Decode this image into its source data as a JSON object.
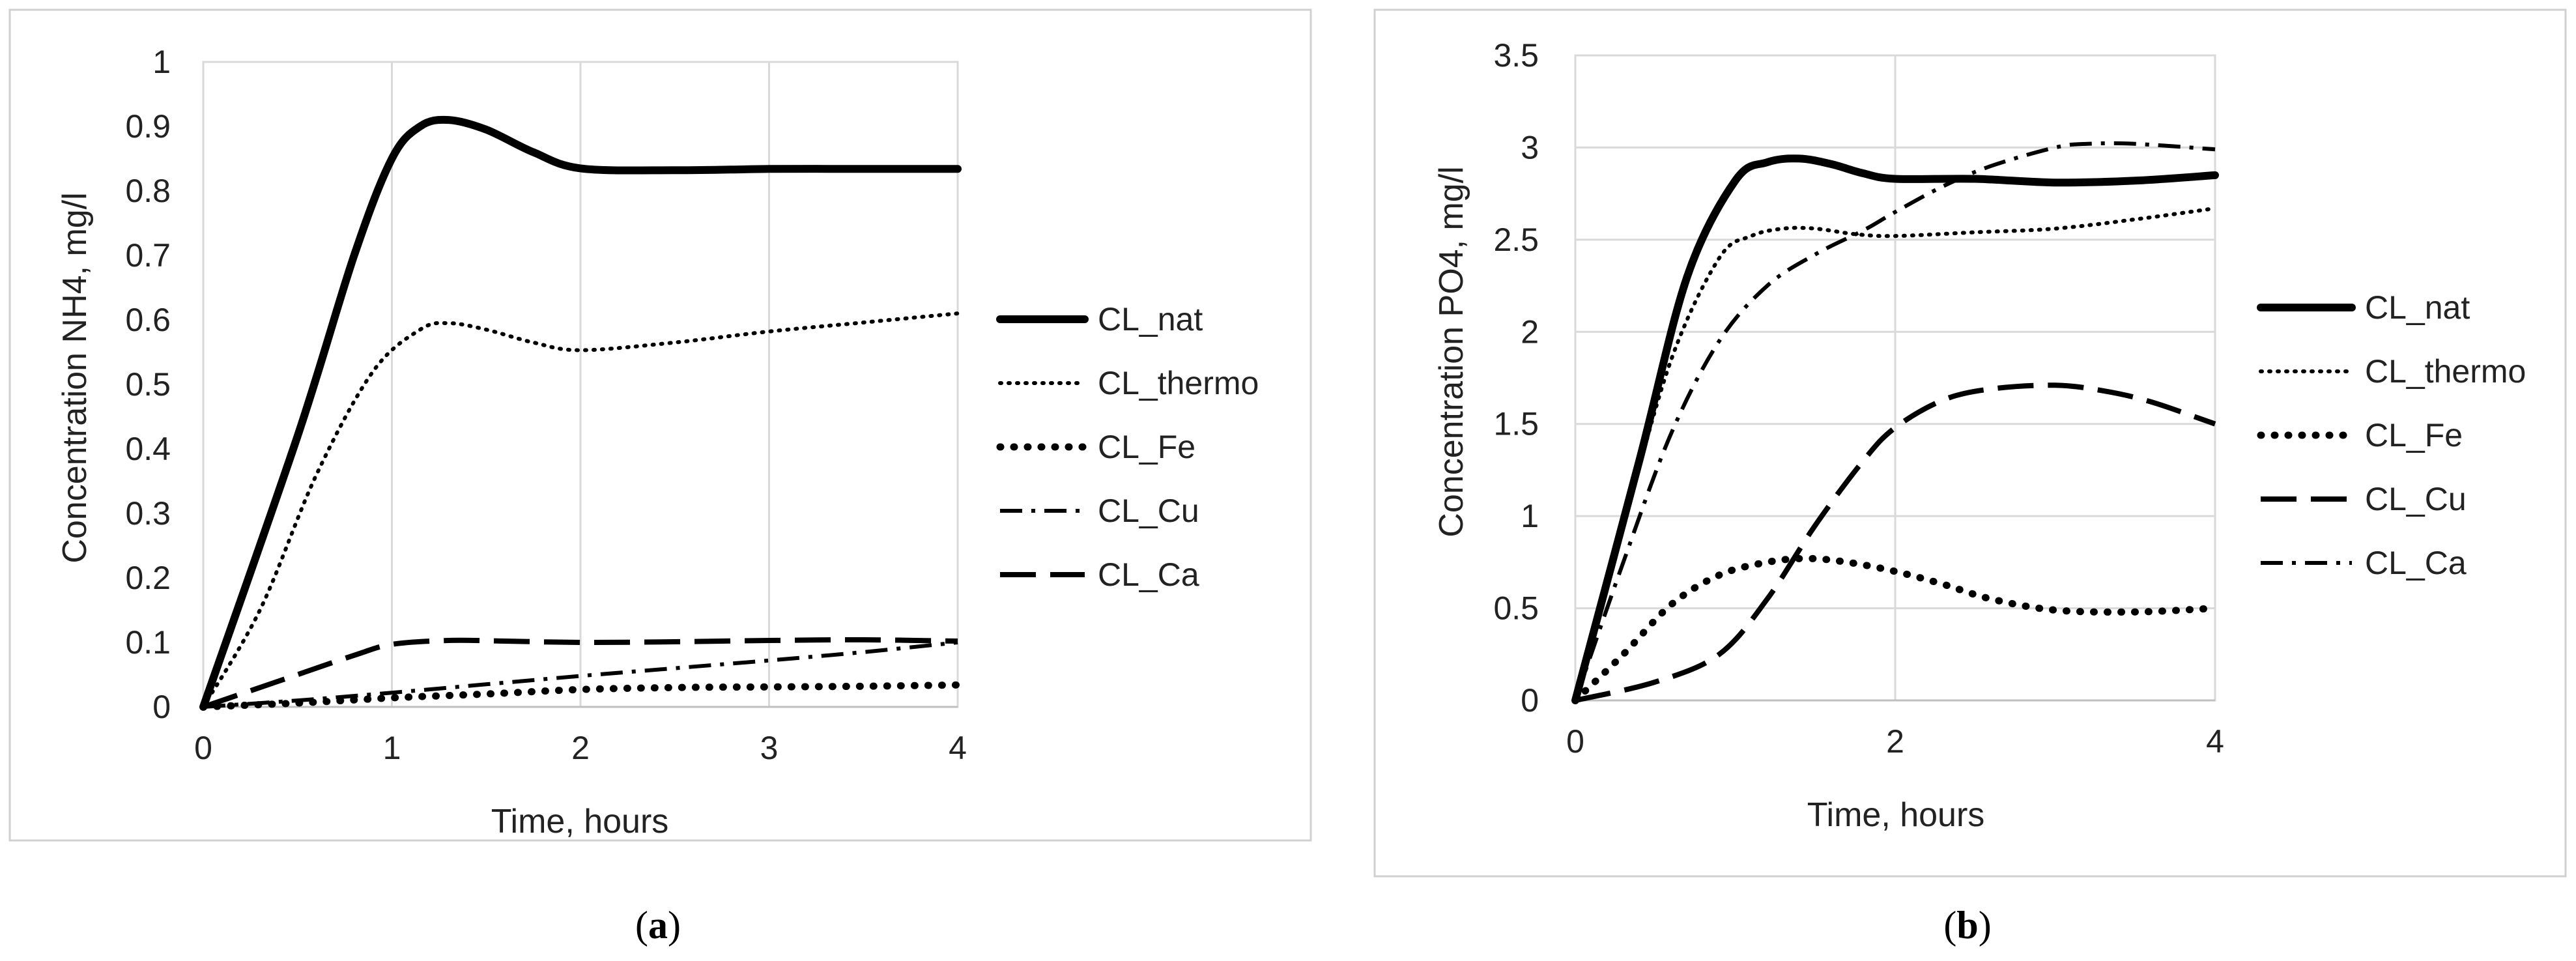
{
  "chart_data": [
    {
      "type": "line",
      "panel": "a",
      "title": "",
      "xlabel": "Time, hours",
      "ylabel": "Concentration NH4, mg/l",
      "xlim": [
        0,
        4
      ],
      "ylim": [
        0,
        1
      ],
      "xticks": [
        "0",
        "1",
        "2",
        "3",
        "4"
      ],
      "yticks": [
        "0",
        "0.1",
        "0.2",
        "0.3",
        "0.4",
        "0.5",
        "0.6",
        "0.7",
        "0.8",
        "0.9",
        "1"
      ],
      "grid": "vertical",
      "legend_position": "right",
      "series": [
        {
          "name": "CL_nat",
          "style": "solid-thick",
          "x": [
            0,
            0.5,
            0.8,
            1.0,
            1.15,
            1.3,
            1.5,
            1.75,
            2.0,
            2.5,
            3.0,
            3.5,
            4.0
          ],
          "y": [
            0,
            0.42,
            0.7,
            0.85,
            0.9,
            0.91,
            0.895,
            0.86,
            0.835,
            0.832,
            0.834,
            0.834,
            0.834
          ]
        },
        {
          "name": "CL_thermo",
          "style": "dotted-fine",
          "x": [
            0,
            0.3,
            0.6,
            0.9,
            1.15,
            1.3,
            1.5,
            1.75,
            2.0,
            2.5,
            3.0,
            3.5,
            4.0
          ],
          "y": [
            0,
            0.15,
            0.36,
            0.52,
            0.585,
            0.595,
            0.585,
            0.565,
            0.553,
            0.565,
            0.582,
            0.596,
            0.61
          ]
        },
        {
          "name": "CL_Fe",
          "style": "dotted-round",
          "x": [
            0,
            0.5,
            1.0,
            1.5,
            2.0,
            2.5,
            3.0,
            3.5,
            4.0
          ],
          "y": [
            0,
            0.006,
            0.014,
            0.02,
            0.027,
            0.03,
            0.031,
            0.032,
            0.034
          ]
        },
        {
          "name": "CL_Cu",
          "style": "dash-dot",
          "x": [
            0,
            0.5,
            1.0,
            1.5,
            2.0,
            2.5,
            3.0,
            3.5,
            4.0
          ],
          "y": [
            0,
            0.01,
            0.022,
            0.035,
            0.048,
            0.06,
            0.072,
            0.085,
            0.1
          ]
        },
        {
          "name": "CL_Ca",
          "style": "long-dash",
          "x": [
            0,
            0.4,
            0.8,
            1.0,
            1.3,
            1.6,
            2.0,
            2.5,
            3.0,
            3.5,
            4.0
          ],
          "y": [
            0,
            0.04,
            0.08,
            0.097,
            0.103,
            0.102,
            0.1,
            0.101,
            0.103,
            0.104,
            0.102
          ]
        }
      ],
      "legend_order": [
        "CL_nat",
        "CL_thermo",
        "CL_Fe",
        "CL_Cu",
        "CL_Ca"
      ]
    },
    {
      "type": "line",
      "panel": "b",
      "title": "",
      "xlabel": "Time, hours",
      "ylabel": "Concentration PO4, mg/l",
      "xlim": [
        0,
        4
      ],
      "ylim": [
        0,
        3.5
      ],
      "xticks": [
        "0",
        "2",
        "4"
      ],
      "yticks": [
        "0",
        "0.5",
        "1",
        "1.5",
        "2",
        "2.5",
        "3",
        "3.5"
      ],
      "grid": "both",
      "legend_position": "right",
      "series": [
        {
          "name": "CL_nat",
          "style": "solid-thick",
          "x": [
            0,
            0.4,
            0.7,
            1.0,
            1.2,
            1.4,
            1.6,
            1.8,
            2.0,
            2.5,
            3.0,
            3.5,
            4.0
          ],
          "y": [
            0,
            1.3,
            2.3,
            2.82,
            2.92,
            2.94,
            2.91,
            2.86,
            2.83,
            2.83,
            2.81,
            2.82,
            2.85
          ]
        },
        {
          "name": "CL_thermo",
          "style": "dotted-fine",
          "x": [
            0,
            0.3,
            0.6,
            0.9,
            1.1,
            1.3,
            1.5,
            1.75,
            2.0,
            2.5,
            3.0,
            3.5,
            4.0
          ],
          "y": [
            0,
            0.95,
            1.85,
            2.4,
            2.52,
            2.56,
            2.56,
            2.53,
            2.52,
            2.54,
            2.56,
            2.61,
            2.67
          ]
        },
        {
          "name": "CL_Fe",
          "style": "dotted-round",
          "x": [
            0,
            0.3,
            0.6,
            0.9,
            1.2,
            1.45,
            1.7,
            2.0,
            2.3,
            2.6,
            3.0,
            3.5,
            4.0
          ],
          "y": [
            0,
            0.25,
            0.52,
            0.68,
            0.75,
            0.77,
            0.75,
            0.7,
            0.63,
            0.55,
            0.49,
            0.48,
            0.5
          ]
        },
        {
          "name": "CL_Cu",
          "style": "long-dash",
          "x": [
            0,
            0.5,
            0.9,
            1.2,
            1.5,
            1.8,
            2.0,
            2.3,
            2.6,
            3.0,
            3.3,
            3.6,
            4.0
          ],
          "y": [
            0,
            0.1,
            0.25,
            0.55,
            0.95,
            1.3,
            1.48,
            1.63,
            1.69,
            1.71,
            1.68,
            1.62,
            1.5
          ]
        },
        {
          "name": "CL_Ca",
          "style": "dash-dot",
          "x": [
            0,
            0.3,
            0.6,
            0.9,
            1.2,
            1.5,
            1.8,
            2.0,
            2.3,
            2.6,
            3.0,
            3.2,
            3.5,
            4.0
          ],
          "y": [
            0,
            0.75,
            1.45,
            1.95,
            2.25,
            2.42,
            2.55,
            2.65,
            2.79,
            2.9,
            3.0,
            3.02,
            3.02,
            2.99
          ]
        }
      ],
      "legend_order": [
        "CL_nat",
        "CL_thermo",
        "CL_Fe",
        "CL_Cu",
        "CL_Ca"
      ]
    }
  ],
  "panel_labels": [
    "(a)",
    "(b)"
  ],
  "panel_label_letters": [
    "a",
    "b"
  ]
}
